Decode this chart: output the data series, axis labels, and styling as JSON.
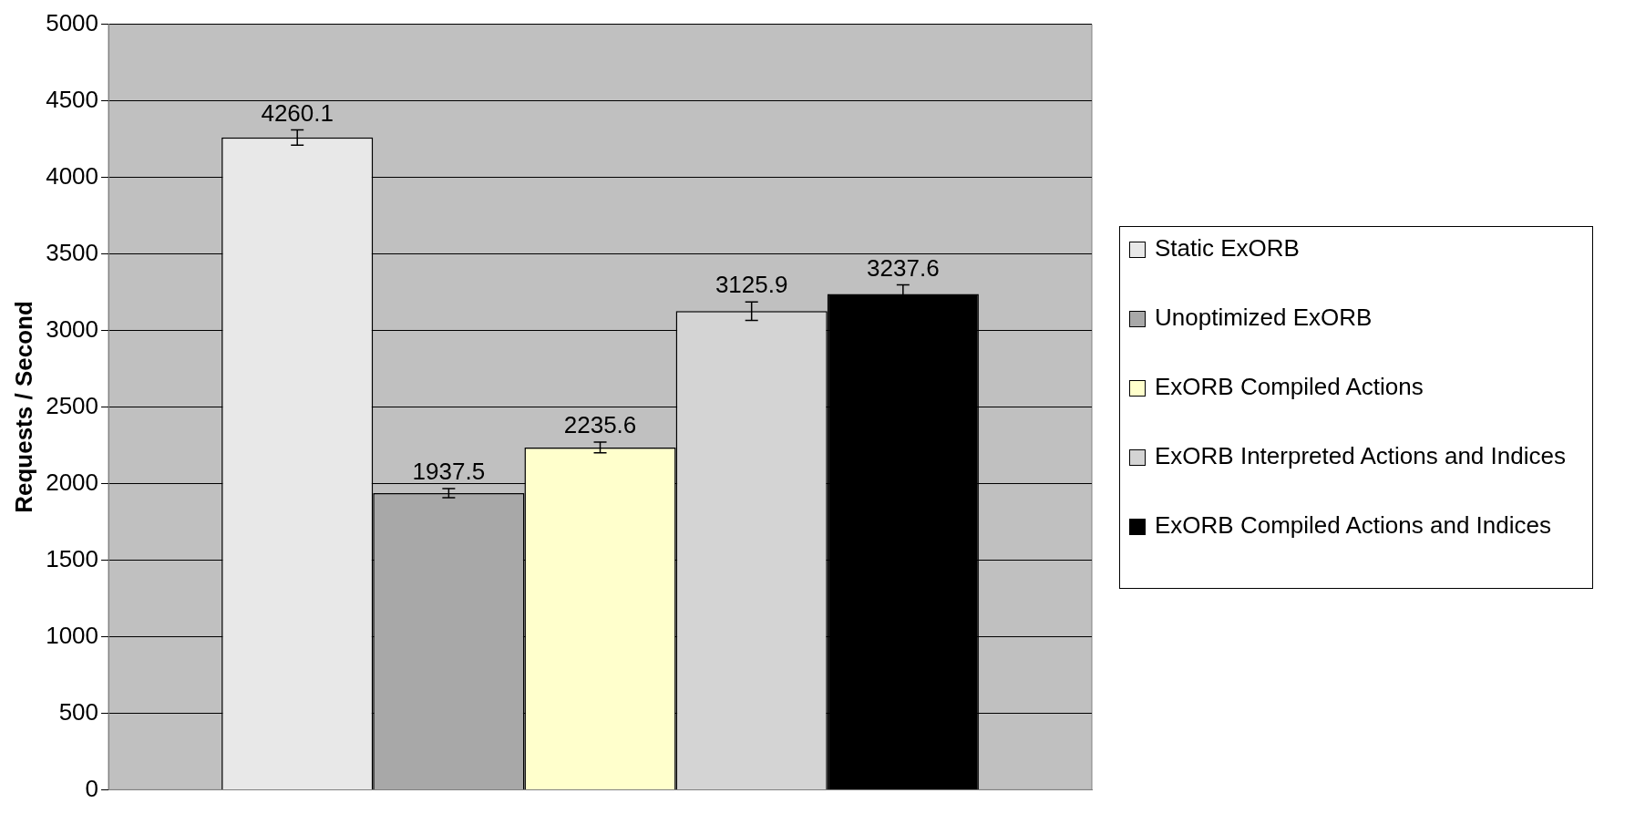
{
  "chart_data": {
    "type": "bar",
    "ylabel": "Requests / Second",
    "categories": [
      null
    ],
    "series": [
      {
        "name": "Static ExORB",
        "color": "#e8e8e8",
        "values": [
          4260.1
        ],
        "errors": [
          50
        ]
      },
      {
        "name": "Unoptimized ExORB",
        "color": "#a8a8a8",
        "values": [
          1937.5
        ],
        "errors": [
          30
        ]
      },
      {
        "name": "ExORB Compiled Actions",
        "color": "#ffffcc",
        "values": [
          2235.6
        ],
        "errors": [
          35
        ]
      },
      {
        "name": "ExORB Interpreted Actions and Indices",
        "color": "#d4d4d4",
        "values": [
          3125.9
        ],
        "errors": [
          60
        ]
      },
      {
        "name": "ExORB Compiled Actions and Indices",
        "color": "#000000",
        "values": [
          3237.6
        ],
        "errors": [
          60
        ]
      }
    ],
    "ylim": [
      0,
      5000
    ],
    "yticks": [
      0,
      500,
      1000,
      1500,
      2000,
      2500,
      3000,
      3500,
      4000,
      4500,
      5000
    ],
    "grid": "y",
    "legend": "right",
    "data_labels": true
  }
}
